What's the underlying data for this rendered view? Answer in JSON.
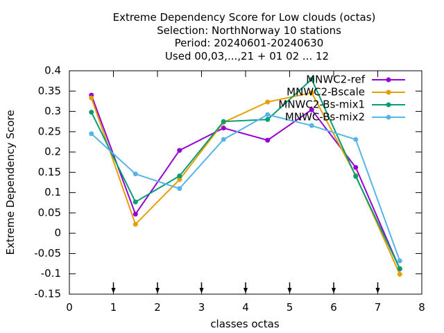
{
  "chart_data": {
    "type": "line",
    "title_lines": [
      "Extreme Dependency Score  for Low clouds (octas)",
      "Selection: NorthNorway      10 stations",
      "Period: 20240601-20240630",
      "Used 00,03,...,21 + 01 02 ... 12"
    ],
    "xlabel": "classes octas",
    "ylabel": "Extreme Dependency Score",
    "xlim": [
      0,
      8
    ],
    "ylim": [
      -0.15,
      0.4
    ],
    "x_ticks": [
      0,
      1,
      2,
      3,
      4,
      5,
      6,
      7,
      8
    ],
    "y_ticks": [
      -0.15,
      -0.1,
      -0.05,
      0,
      0.05,
      0.1,
      0.15,
      0.2,
      0.25,
      0.3,
      0.35,
      0.4
    ],
    "x_tick_labels": [
      "0",
      "1",
      "2",
      "3",
      "4",
      "5",
      "6",
      "7",
      "8"
    ],
    "y_tick_labels": [
      "-0.15",
      "-0.1",
      "-0.05",
      "0",
      "0.05",
      "0.1",
      "0.15",
      "0.2",
      "0.25",
      "0.3",
      "0.35",
      "0.4"
    ],
    "x_markers": [
      1,
      2,
      3,
      4,
      5,
      6,
      7
    ],
    "grid": false,
    "legend_position": "top-right",
    "x": [
      0.5,
      1.5,
      2.5,
      3.5,
      4.5,
      5.5,
      6.5,
      7.5
    ],
    "series": [
      {
        "name": "MNWC2-ref",
        "color": "#9400d3",
        "values": [
          0.34,
          0.047,
          0.204,
          0.259,
          0.229,
          0.304,
          0.162,
          -0.088
        ]
      },
      {
        "name": "MNWC2-Bscale",
        "color": "#e69f00",
        "values": [
          0.333,
          0.022,
          0.132,
          0.273,
          0.323,
          0.346,
          0.142,
          -0.101
        ]
      },
      {
        "name": "MNWC2-Bs-mix1",
        "color": "#009e73",
        "values": [
          0.298,
          0.077,
          0.141,
          0.275,
          0.28,
          0.379,
          0.14,
          -0.087
        ]
      },
      {
        "name": "MNWC-Bs-mix2",
        "color": "#56b4e9",
        "values": [
          0.245,
          0.146,
          0.11,
          0.231,
          0.292,
          0.265,
          0.231,
          -0.068
        ]
      }
    ]
  }
}
